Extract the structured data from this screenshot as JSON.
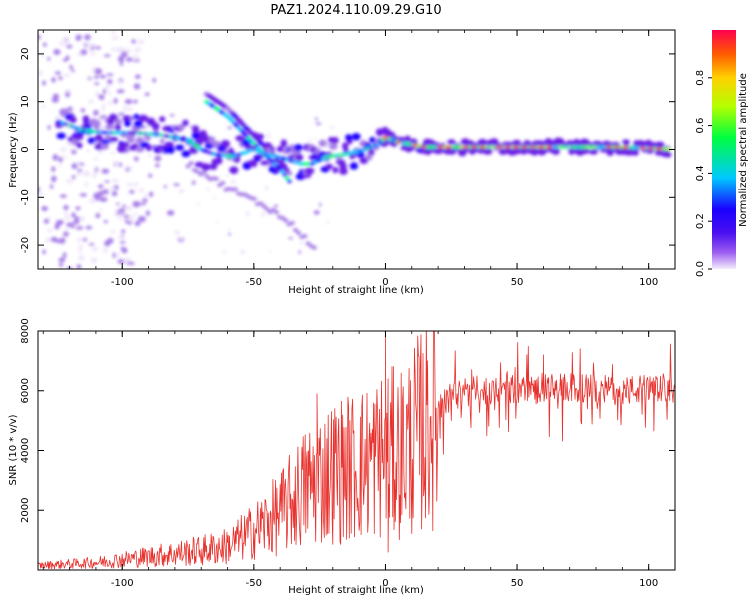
{
  "title": "PAZ1.2024.110.09.29.G10",
  "colors": {
    "snr_line": "#e8322e",
    "axis": "#000000",
    "colormap": [
      "#f0e6fa",
      "#a77ee8",
      "#6a1fe6",
      "#1a00ff",
      "#00c8ff",
      "#00ff66",
      "#b4ff00",
      "#ffd000",
      "#ff5a00",
      "#ff0050"
    ]
  },
  "chart_data": [
    {
      "type": "heatmap",
      "description_of_axes": "spectrogram of frequency vs height",
      "xlabel": "Height of straight line (km)",
      "ylabel": "Frequency (Hz)",
      "xlim": [
        -132,
        110
      ],
      "ylim": [
        -25,
        25
      ],
      "xticks": [
        -100,
        -50,
        0,
        50,
        100
      ],
      "yticks": [
        -20,
        -10,
        0,
        10,
        20
      ],
      "grid": false,
      "colorbar": {
        "label": "Normalized spectral amplitude",
        "range": [
          0,
          1
        ],
        "ticks": [
          "0.0",
          "0.2",
          "0.4",
          "0.6",
          "0.8"
        ]
      },
      "ridges": [
        {
          "name": "main",
          "points": [
            [
              -125,
              6
            ],
            [
              -115,
              4
            ],
            [
              -105,
              3.5
            ],
            [
              -95,
              3.5
            ],
            [
              -85,
              3
            ],
            [
              -75,
              2
            ],
            [
              -70,
              0
            ],
            [
              -65,
              -1
            ],
            [
              -58,
              -1.5
            ],
            [
              -50,
              0
            ],
            [
              -45,
              -1
            ],
            [
              -38,
              -2
            ],
            [
              -32,
              -3
            ],
            [
              -28,
              -3
            ],
            [
              -22,
              -1.5
            ],
            [
              -15,
              -1
            ],
            [
              -8,
              0
            ],
            [
              -3,
              1
            ],
            [
              0,
              2.5
            ],
            [
              5,
              1.5
            ],
            [
              15,
              0.5
            ],
            [
              30,
              0.5
            ],
            [
              50,
              0.5
            ],
            [
              70,
              0.5
            ],
            [
              90,
              0.5
            ],
            [
              110,
              0
            ]
          ]
        },
        {
          "name": "upper-branch",
          "points": [
            [
              -68,
              10
            ],
            [
              -60,
              7
            ],
            [
              -53,
              3
            ],
            [
              -46,
              -1
            ],
            [
              -40,
              -4
            ],
            [
              -36,
              -7
            ]
          ]
        },
        {
          "name": "lower-branch",
          "points": [
            [
              -75,
              -3
            ],
            [
              -60,
              -8
            ],
            [
              -45,
              -12
            ],
            [
              -35,
              -16
            ],
            [
              -28,
              -20
            ],
            [
              -26,
              -22
            ]
          ]
        }
      ]
    },
    {
      "type": "line",
      "xlabel": "Height of straight line (km)",
      "ylabel": "SNR (10 * v/v)",
      "xlim": [
        -132,
        110
      ],
      "ylim": [
        0,
        8000
      ],
      "xticks": [
        -100,
        -50,
        0,
        50,
        100
      ],
      "yticks": [
        2000,
        4000,
        6000,
        8000
      ],
      "grid": false,
      "envelope": {
        "x": [
          -132,
          -110,
          -90,
          -70,
          -60,
          -50,
          -40,
          -30,
          -20,
          -10,
          -5,
          0,
          5,
          10,
          15,
          20,
          25,
          30,
          40,
          50,
          60,
          70,
          80,
          90,
          100,
          110
        ],
        "y": [
          150,
          250,
          450,
          650,
          800,
          1300,
          1900,
          2800,
          3300,
          3500,
          3700,
          3900,
          3900,
          4300,
          4800,
          5400,
          5800,
          5950,
          6050,
          6050,
          6050,
          6100,
          6050,
          6000,
          6050,
          6100
        ]
      },
      "spikes": [
        {
          "x": 0,
          "y": 8000
        },
        {
          "x": 1,
          "y": 600
        },
        {
          "x": -26,
          "y": 5900
        },
        {
          "x": 60,
          "y": 7200
        }
      ]
    }
  ]
}
